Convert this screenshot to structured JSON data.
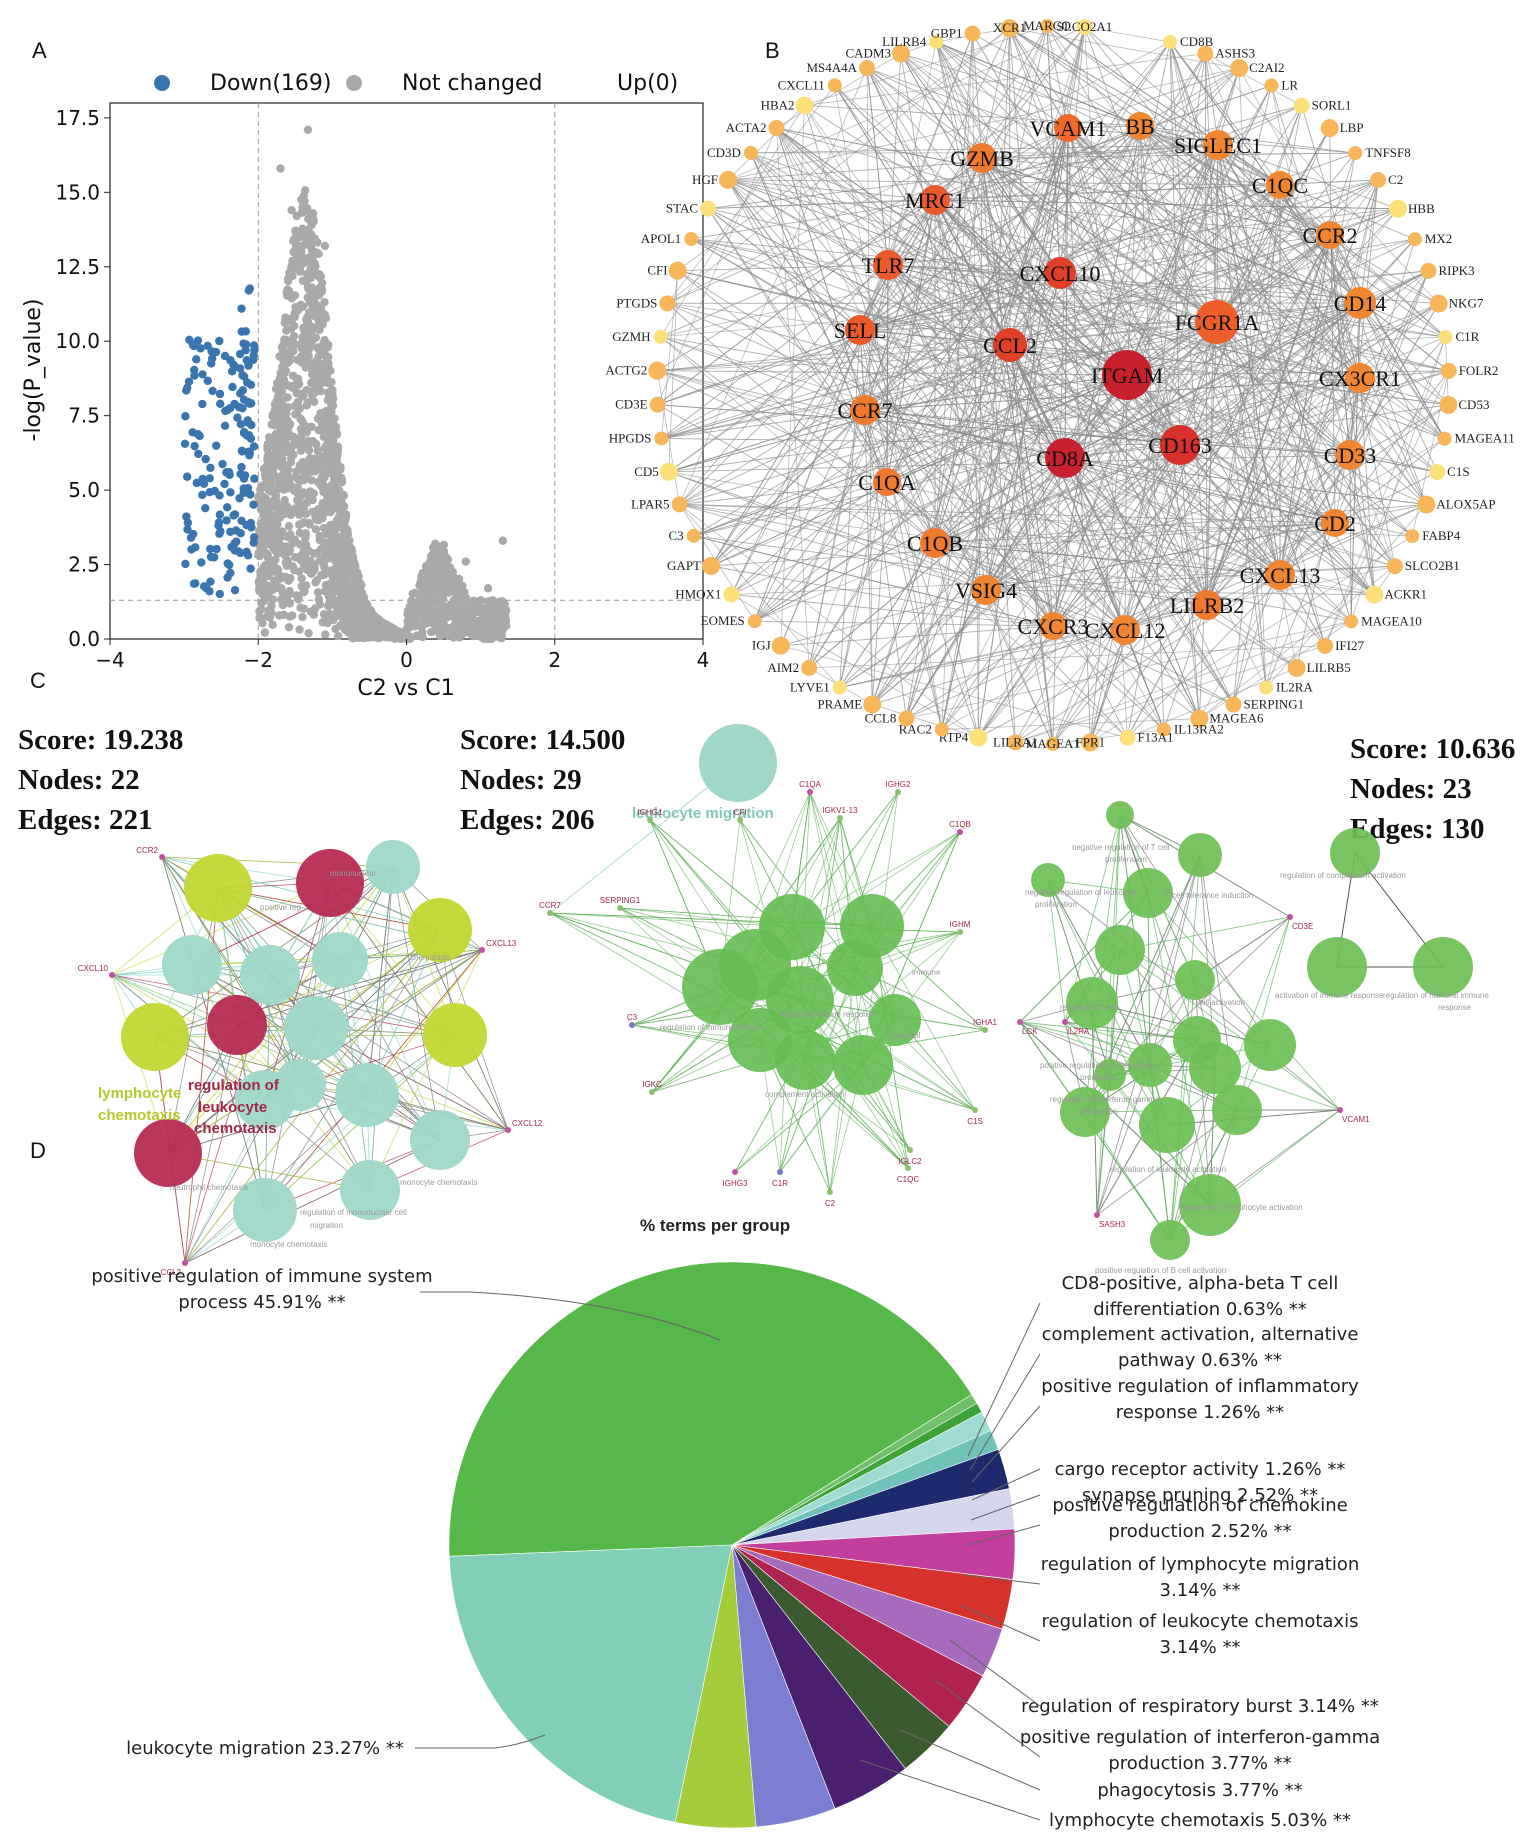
{
  "panels": {
    "a": "A",
    "b": "B",
    "c": "C",
    "d": "D"
  },
  "volcano": {
    "type": "scatter",
    "legend": [
      {
        "label": "Down(169)",
        "color": "#3b75af"
      },
      {
        "label": "Not changed",
        "color": "#a9a9a9"
      },
      {
        "label": "Up(0)",
        "color": "#d62728"
      }
    ],
    "xlabel": "C2 vs C1",
    "ylabel": "-log(P_value)",
    "xlim": [
      -4,
      4
    ],
    "ylim": [
      0,
      18
    ],
    "xticks": [
      "−4",
      "−2",
      "0",
      "2",
      "4"
    ],
    "xtick_values": [
      -4,
      -2,
      0,
      2,
      4
    ],
    "yticks": [
      "0.0",
      "2.5",
      "5.0",
      "7.5",
      "10.0",
      "12.5",
      "15.0",
      "17.5"
    ],
    "ytick_values": [
      0,
      2.5,
      5,
      7.5,
      10,
      12.5,
      15,
      17.5
    ],
    "thresholds": {
      "x": [
        -2,
        2
      ],
      "y": 1.3
    }
  },
  "network": {
    "outer_nodes": [
      "CD8B",
      "ASHS3",
      "C2AI2",
      "LR",
      "SORL1",
      "LBP",
      "TNFSF8",
      "C2",
      "HBB",
      "MX2",
      "RIPK3",
      "NKG7",
      "C1R",
      "FOLR2",
      "CD53",
      "MAGEA11",
      "C1S",
      "ALOX5AP",
      "FABP4",
      "SLCO2B1",
      "ACKR1",
      "MAGEA10",
      "IFI27",
      "LILRB5",
      "IL2RA",
      "SERPING1",
      "MAGEA6",
      "IL13RA2",
      "F13A1",
      "FPR1",
      "MAGEA1",
      "LILRA1",
      "RTP4",
      "RAC2",
      "CCL8",
      "PRAME",
      "LYVE1",
      "AIM2",
      "IGJ",
      "EOMES",
      "HMOX1",
      "GAPT",
      "C3",
      "LPAR5",
      "CD5",
      "HPGDS",
      "CD3E",
      "ACTG2",
      "GZMH",
      "PTGDS",
      "CFI",
      "APOL1",
      "STAC",
      "HGF",
      "CD3D",
      "ACTA2",
      "HBA2",
      "CXCL11",
      "MS4A4A",
      "CADM3",
      "LILRB4",
      "GBP1",
      "XCR1",
      "MARCO",
      "SLCO2A1"
    ],
    "inner_nodes": [
      "VCAM1",
      "BB",
      "SIGLEC1",
      "GZMB",
      "C1QC",
      "MRC1",
      "CCR2",
      "TLR7",
      "CXCL10",
      "CD14",
      "FCGR1A",
      "SELL",
      "CCL2",
      "ITGAM",
      "CX3CR1",
      "CCR7",
      "CD163",
      "CD33",
      "CD8A",
      "C1QA",
      "CD2",
      "C1QB",
      "CXCL13",
      "VSIG4",
      "LILRB2",
      "CXCR3",
      "CXCL12"
    ]
  },
  "clusters": [
    {
      "score": "Score: 19.238",
      "nodes": "Nodes: 22",
      "edges": "Edges: 221"
    },
    {
      "score": "Score: 14.500",
      "nodes": "Nodes: 29",
      "edges": "Edges: 206"
    },
    {
      "score": "Score: 10.636",
      "nodes": "Nodes: 23",
      "edges": "Edges: 130"
    }
  ],
  "cluster1": {
    "genes": [
      "CCR2",
      "CXCL10",
      "CXCL13",
      "CXCL12",
      "CCL2"
    ],
    "terms": [
      "lymphocyte",
      "chemotaxis",
      "regulation of",
      "leukocyte",
      "chemotaxis"
    ],
    "small": [
      "neutrophil chemotaxis",
      "monocyte chemotaxis",
      "regulation of mononuclear cell",
      "migration",
      "mononuclear",
      "positive reg",
      "chemotaxis",
      "monocyte chemotaxis"
    ]
  },
  "cluster2": {
    "term": "leukocyte migration",
    "genes": [
      "CCR7",
      "C1QA",
      "IGHG2",
      "IGHG1",
      "CFI",
      "IGKV1-13",
      "C1QB",
      "SERPING1",
      "IGHM",
      "C3",
      "IGHA1",
      "IGKC",
      "C1S",
      "IGLC2",
      "IGHG3",
      "C1R",
      "C1QC",
      "C2"
    ],
    "small": [
      "complement activation",
      "regulation of immune effector",
      "adaptive immune response",
      "classical",
      "immune"
    ],
    "footer": "% terms per group"
  },
  "cluster3": {
    "genes": [
      "CD3E",
      "IL2RA",
      "LCK",
      "VCAM1",
      "SASH3"
    ],
    "small": [
      "negative regulation of T cell",
      "proliferation",
      "negative regulation of leukocyte",
      "proliferation",
      "T cell tolerance induction",
      "regulation of complement activation",
      "activation of immune response",
      "regulation of humoral immune",
      "response",
      "regulation of interferon-gamma",
      "production",
      "positive regulation of interleukin-2",
      "production",
      "regulation of leukocyte activation",
      "regulation of lymphocyte activation",
      "positive regulation of B cell activation",
      "T cell activation",
      "regulation of cell"
    ]
  },
  "chart_data": {
    "type": "pie",
    "title": "% terms per group",
    "slices": [
      {
        "label": "positive regulation of immune system process 45.91% **",
        "value": 45.91,
        "color": "#55b848"
      },
      {
        "label": "CD8-positive, alpha-beta T cell differentiation 0.63% **",
        "value": 0.63,
        "color": "#6fc06a"
      },
      {
        "label": "complement activation, alternative pathway 0.63% **",
        "value": 0.63,
        "color": "#3ea23a"
      },
      {
        "label": "positive regulation of inflammatory response 1.26% **",
        "value": 1.26,
        "color": "#9edbd0"
      },
      {
        "label": "cargo receptor activity 1.26% **",
        "value": 1.26,
        "color": "#6fc3b8"
      },
      {
        "label": "synapse pruning 2.52% **",
        "value": 2.52,
        "color": "#1d2a6e"
      },
      {
        "label": "positive regulation of chemokine production 2.52% **",
        "value": 2.52,
        "color": "#d5d5ec"
      },
      {
        "label": "regulation of lymphocyte migration 3.14% **",
        "value": 3.14,
        "color": "#c43e9e"
      },
      {
        "label": "regulation of leukocyte chemotaxis 3.14% **",
        "value": 3.14,
        "color": "#d7312c"
      },
      {
        "label": "regulation of respiratory burst 3.14% **",
        "value": 3.14,
        "color": "#a66bbd"
      },
      {
        "label": "positive regulation of interferon-gamma production 3.77% **",
        "value": 3.77,
        "color": "#b0234f"
      },
      {
        "label": "phagocytosis 3.77% **",
        "value": 3.77,
        "color": "#3a5b2f"
      },
      {
        "label": "lymphocyte chemotaxis 5.03% **",
        "value": 5.03,
        "color": "#4a1f6e"
      },
      {
        "label": "",
        "value": 5.03,
        "color": "#7c7fd1"
      },
      {
        "label": "",
        "value": 5.03,
        "color": "#a5cc3a"
      },
      {
        "label": "leukocyte migration 23.27% **",
        "value": 23.27,
        "color": "#82cfb8"
      }
    ],
    "label_lines": [
      [
        "positive regulation of immune system",
        "process 45.91% **"
      ],
      [
        "CD8-positive, alpha-beta T cell",
        "differentiation 0.63% **"
      ],
      [
        "complement activation, alternative",
        "pathway 0.63% **"
      ],
      [
        "positive regulation of inflammatory",
        "response 1.26% **"
      ],
      [
        "cargo receptor activity 1.26% **"
      ],
      [
        "synapse pruning 2.52% **"
      ],
      [
        "positive regulation of chemokine",
        "production 2.52% **"
      ],
      [
        "regulation of lymphocyte migration",
        "3.14% **"
      ],
      [
        "regulation of leukocyte chemotaxis",
        "3.14% **"
      ],
      [
        "regulation of respiratory burst 3.14% **"
      ],
      [
        "positive regulation of interferon-gamma",
        "production 3.77% **"
      ],
      [
        "phagocytosis 3.77% **"
      ],
      [
        "lymphocyte chemotaxis 5.03% **"
      ],
      [
        "leukocyte migration 23.27% **"
      ]
    ]
  }
}
